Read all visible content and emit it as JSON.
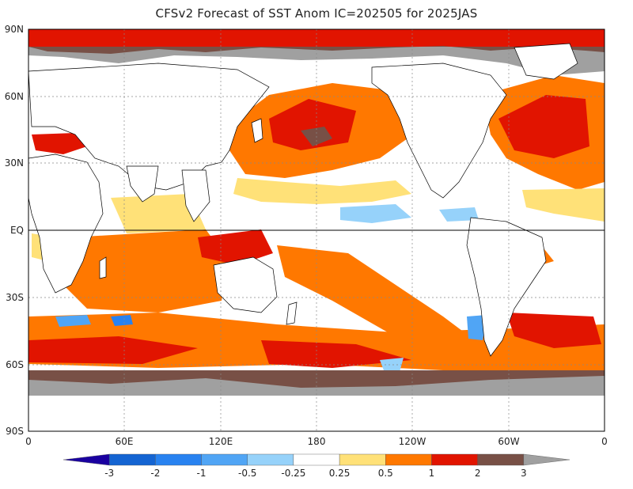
{
  "title": "CFSv2 Forecast of SST Anom IC=202505 for 2025JAS",
  "lat_labels": [
    "90N",
    "60N",
    "30N",
    "EQ",
    "30S",
    "60S",
    "90S"
  ],
  "lon_labels": [
    "0",
    "60E",
    "120E",
    "180",
    "120W",
    "60W",
    "0"
  ],
  "colorbar": {
    "labels": [
      "-3",
      "-2",
      "-1",
      "-0.5",
      "-0.25",
      "0.25",
      "0.5",
      "1",
      "2",
      "3"
    ],
    "colors": [
      "#1a00a0",
      "#1464d2",
      "#2882f0",
      "#50a5f5",
      "#96d2fa",
      "#ffffff",
      "#ffe178",
      "#ff7800",
      "#e11400",
      "#785046",
      "#a0a0a0"
    ]
  },
  "colors": {
    "land": "#ffffff",
    "sea_ice": "#a0a0a0",
    "anom_0_25_to_0_5": "#ffe178",
    "anom_0_5_to_1": "#ff7800",
    "anom_1_to_2": "#e11400",
    "anom_2_to_3": "#785046",
    "anom_neg_0_25_to_neg_0_5": "#96d2fa",
    "anom_neg_0_5_to_neg_1": "#50a5f5",
    "anom_neg_1_to_neg_2": "#2882f0"
  }
}
